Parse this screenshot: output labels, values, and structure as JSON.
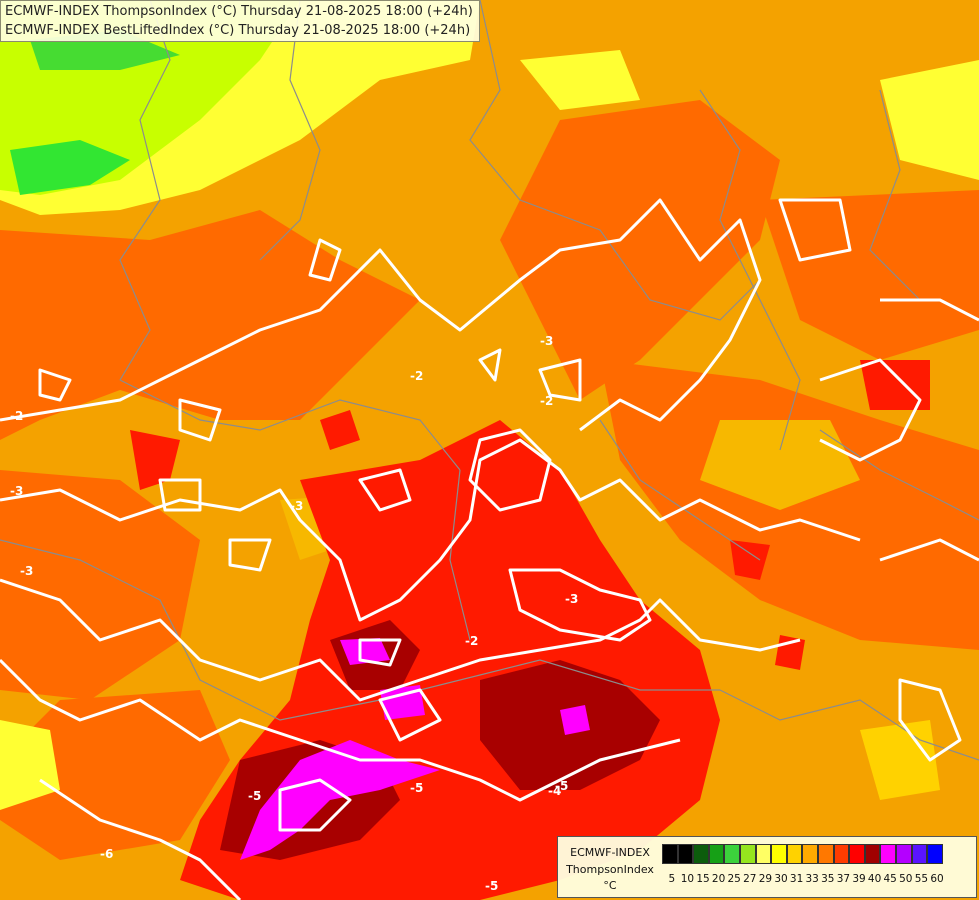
{
  "title": {
    "line1": "ECMWF-INDEX ThompsonIndex (°C) Thursday 21-08-2025 18:00 (+24h)",
    "line2": "ECMWF-INDEX BestLiftedIndex (°C) Thursday 21-08-2025 18:00 (+24h)"
  },
  "legend": {
    "source": "ECMWF-INDEX",
    "parameter": "ThompsonIndex",
    "unit": "°C",
    "ticks": [
      "5",
      "10",
      "15",
      "20",
      "25",
      "27",
      "29",
      "30",
      "31",
      "33",
      "35",
      "37",
      "39",
      "40",
      "45",
      "50",
      "55",
      "60"
    ],
    "colors": [
      "#000000",
      "#000000",
      "#000000",
      "#000000",
      "#0c5c0c",
      "#16a016",
      "#3cd23c",
      "#96e61e",
      "#ffff64",
      "#ffff00",
      "#ffd200",
      "#ffaa00",
      "#ff7800",
      "#ff3c00",
      "#ff0000",
      "#a00000",
      "#ff00ff",
      "#b400ff",
      "#5a14ff",
      "#0000ff"
    ]
  },
  "contour_labels": [
    "-2",
    "-2",
    "-2",
    "-2",
    "-3",
    "-3",
    "-3",
    "-3",
    "-3",
    "-4",
    "-5",
    "-5",
    "-5",
    "-5",
    "-6"
  ]
}
